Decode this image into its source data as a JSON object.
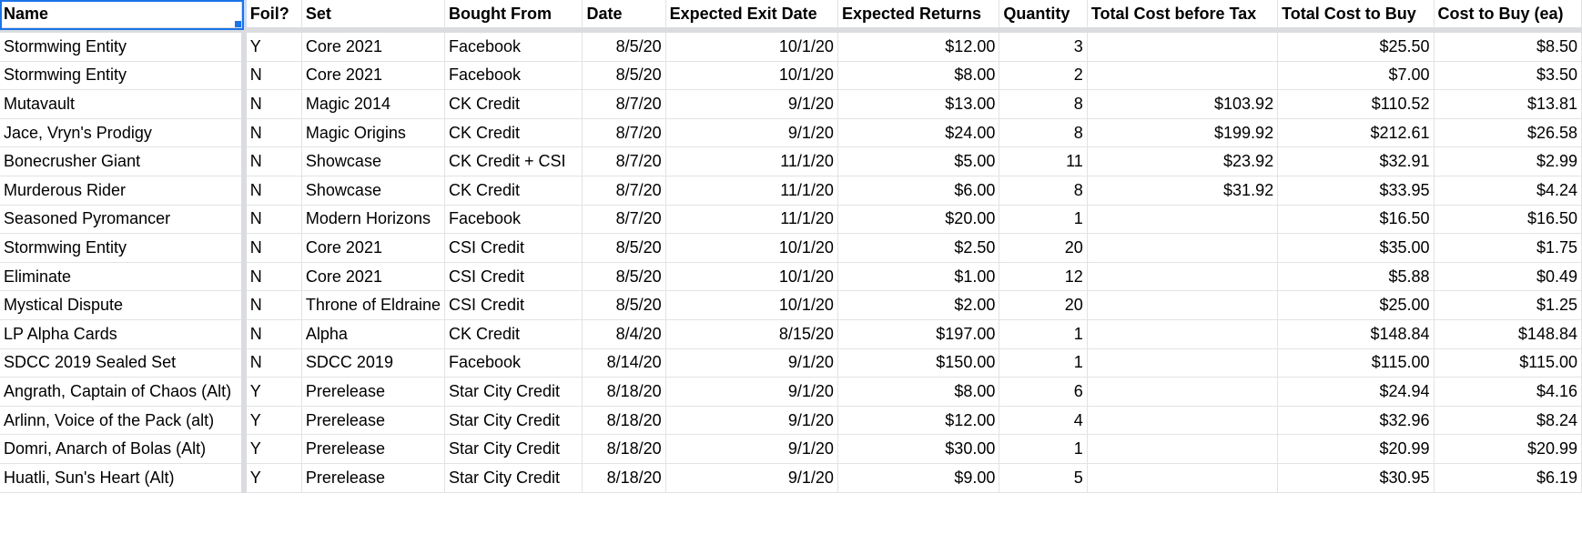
{
  "headers": [
    "Name",
    "Foil?",
    "Set",
    "Bought From",
    "Date",
    "Expected Exit Date",
    "Expected Returns",
    "Quantity",
    "Total Cost before Tax",
    "Total Cost to Buy",
    "Cost to Buy (ea)"
  ],
  "rows": [
    [
      "Stormwing Entity",
      "Y",
      "Core 2021",
      "Facebook",
      "8/5/20",
      "10/1/20",
      "$12.00",
      "3",
      "",
      "$25.50",
      "$8.50"
    ],
    [
      "Stormwing Entity",
      "N",
      "Core 2021",
      "Facebook",
      "8/5/20",
      "10/1/20",
      "$8.00",
      "2",
      "",
      "$7.00",
      "$3.50"
    ],
    [
      "Mutavault",
      "N",
      "Magic 2014",
      "CK Credit",
      "8/7/20",
      "9/1/20",
      "$13.00",
      "8",
      "$103.92",
      "$110.52",
      "$13.81"
    ],
    [
      "Jace, Vryn's Prodigy",
      "N",
      "Magic Origins",
      "CK Credit",
      "8/7/20",
      "9/1/20",
      "$24.00",
      "8",
      "$199.92",
      "$212.61",
      "$26.58"
    ],
    [
      "Bonecrusher Giant",
      "N",
      "Showcase",
      "CK Credit + CSI",
      "8/7/20",
      "11/1/20",
      "$5.00",
      "11",
      "$23.92",
      "$32.91",
      "$2.99"
    ],
    [
      "Murderous Rider",
      "N",
      "Showcase",
      "CK Credit",
      "8/7/20",
      "11/1/20",
      "$6.00",
      "8",
      "$31.92",
      "$33.95",
      "$4.24"
    ],
    [
      "Seasoned Pyromancer",
      "N",
      "Modern Horizons",
      "Facebook",
      "8/7/20",
      "11/1/20",
      "$20.00",
      "1",
      "",
      "$16.50",
      "$16.50"
    ],
    [
      "Stormwing Entity",
      "N",
      "Core 2021",
      "CSI Credit",
      "8/5/20",
      "10/1/20",
      "$2.50",
      "20",
      "",
      "$35.00",
      "$1.75"
    ],
    [
      "Eliminate",
      "N",
      "Core 2021",
      "CSI Credit",
      "8/5/20",
      "10/1/20",
      "$1.00",
      "12",
      "",
      "$5.88",
      "$0.49"
    ],
    [
      "Mystical Dispute",
      "N",
      "Throne of Eldraine",
      "CSI Credit",
      "8/5/20",
      "10/1/20",
      "$2.00",
      "20",
      "",
      "$25.00",
      "$1.25"
    ],
    [
      "LP Alpha Cards",
      "N",
      "Alpha",
      "CK Credit",
      "8/4/20",
      "8/15/20",
      "$197.00",
      "1",
      "",
      "$148.84",
      "$148.84"
    ],
    [
      "SDCC 2019 Sealed Set",
      "N",
      "SDCC 2019",
      "Facebook",
      "8/14/20",
      "9/1/20",
      "$150.00",
      "1",
      "",
      "$115.00",
      "$115.00"
    ],
    [
      "Angrath, Captain of Chaos (Alt)",
      "Y",
      "Prerelease",
      "Star City Credit",
      "8/18/20",
      "9/1/20",
      "$8.00",
      "6",
      "",
      "$24.94",
      "$4.16"
    ],
    [
      "Arlinn, Voice of the Pack (alt)",
      "Y",
      "Prerelease",
      "Star City Credit",
      "8/18/20",
      "9/1/20",
      "$12.00",
      "4",
      "",
      "$32.96",
      "$8.24"
    ],
    [
      "Domri, Anarch of Bolas (Alt)",
      "Y",
      "Prerelease",
      "Star City Credit",
      "8/18/20",
      "9/1/20",
      "$30.00",
      "1",
      "",
      "$20.99",
      "$20.99"
    ],
    [
      "Huatli, Sun's Heart (Alt)",
      "Y",
      "Prerelease",
      "Star City Credit",
      "8/18/20",
      "9/1/20",
      "$9.00",
      "5",
      "",
      "$30.95",
      "$6.19"
    ]
  ]
}
